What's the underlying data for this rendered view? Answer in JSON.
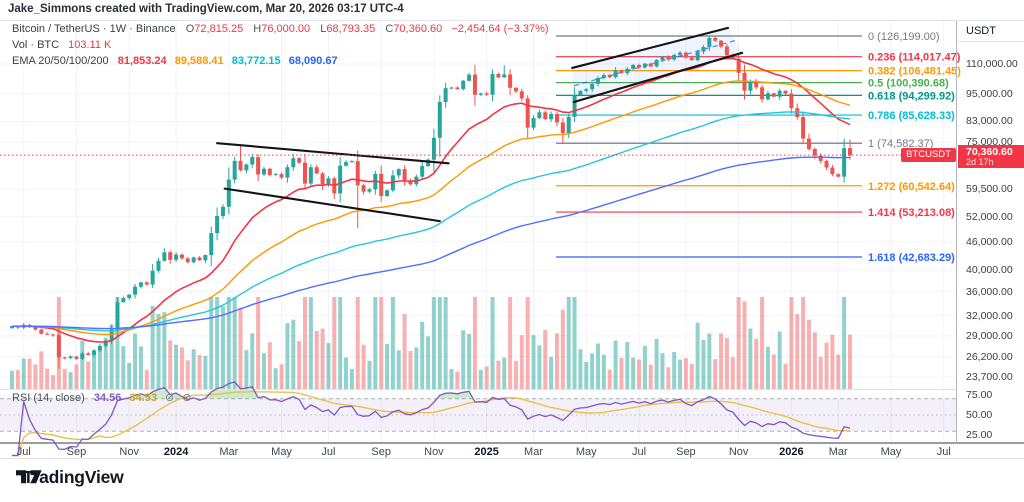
{
  "attribution": "Jake_Simmons created with TradingView.com, Mar 20, 2026 03:17 UTC-4",
  "legend": {
    "title": "Bitcoin / TetherUS · 1W · Binance",
    "o_label": "O",
    "o": "72,815.25",
    "h_label": "H",
    "h": "76,000.00",
    "l_label": "L",
    "l": "68,793.35",
    "c_label": "C",
    "c": "70,360.60",
    "change": "−2,454.64 (−3.37%)",
    "vol_label": "Vol · BTC",
    "vol": "103.11 K",
    "ema_label": "EMA 20/50/100/200",
    "ema20": "81,853.24",
    "ema50": "89,588.41",
    "ema100": "83,772.15",
    "ema200": "68,090.67"
  },
  "rsi_legend": {
    "label": "RSI (14, close)",
    "value": "34.56",
    "ma": "34.53",
    "icon1": "⊘",
    "icon2": "⊘"
  },
  "price_badge": {
    "symbol": "BTCUSDT",
    "price": "70,360.60",
    "countdown": "2d 17h"
  },
  "axis": {
    "currency": "USDT",
    "price_ticks": [
      {
        "label": "110,000.00",
        "v": 110
      },
      {
        "label": "95,000.00",
        "v": 95
      },
      {
        "label": "83,000.00",
        "v": 83
      },
      {
        "label": "75,000.00",
        "v": 75
      },
      {
        "label": "59,500.00",
        "v": 59.5
      },
      {
        "label": "52,000.00",
        "v": 52
      },
      {
        "label": "46,000.00",
        "v": 46
      },
      {
        "label": "40,000.00",
        "v": 40
      },
      {
        "label": "36,000.00",
        "v": 36
      },
      {
        "label": "32,000.00",
        "v": 32
      },
      {
        "label": "29,000.00",
        "v": 29
      },
      {
        "label": "26,200.00",
        "v": 26.2
      },
      {
        "label": "23,700.00",
        "v": 23.7
      }
    ],
    "rsi_ticks": [
      {
        "label": "75.00",
        "r": 75
      },
      {
        "label": "50.00",
        "r": 50
      },
      {
        "label": "25.00",
        "r": 25
      }
    ],
    "time_ticks": [
      {
        "label": "Jul",
        "i": 2
      },
      {
        "label": "Sep",
        "i": 11
      },
      {
        "label": "Nov",
        "i": 20
      },
      {
        "label": "2024",
        "i": 28,
        "year": true
      },
      {
        "label": "Mar",
        "i": 37
      },
      {
        "label": "May",
        "i": 46
      },
      {
        "label": "Jul",
        "i": 54
      },
      {
        "label": "Sep",
        "i": 63
      },
      {
        "label": "Nov",
        "i": 72
      },
      {
        "label": "2025",
        "i": 81,
        "year": true
      },
      {
        "label": "Mar",
        "i": 89
      },
      {
        "label": "May",
        "i": 98
      },
      {
        "label": "Jul",
        "i": 107
      },
      {
        "label": "Sep",
        "i": 115
      },
      {
        "label": "Nov",
        "i": 124
      },
      {
        "label": "2026",
        "i": 133,
        "year": true
      },
      {
        "label": "Mar",
        "i": 141
      },
      {
        "label": "May",
        "i": 150
      },
      {
        "label": "Jul",
        "i": 159
      }
    ]
  },
  "footer": {
    "brand": "TradingView"
  },
  "chart_data": {
    "type": "candlestick+volume+rsi",
    "symbol": "Bitcoin / TetherUS",
    "exchange": "Binance",
    "interval": "1W",
    "scale": "log",
    "unit": "thousand USDT",
    "ohlc_current": {
      "o": 72815.25,
      "h": 76000.0,
      "l": 68793.35,
      "c": 70360.6,
      "change": -2454.64,
      "change_pct": -3.37
    },
    "volume_current": "103.11 K",
    "ema_current": {
      "ema20": 81853.24,
      "ema50": 89588.41,
      "ema100": 83772.15,
      "ema200": 68090.67
    },
    "rsi_current": 34.56,
    "rsi_ma_current": 34.53,
    "rsi_period": 14,
    "closes_k": [
      30.4,
      30.2,
      30.6,
      30.3,
      29.9,
      29.3,
      29.2,
      29.1,
      26.1,
      26.0,
      26.2,
      25.9,
      26.6,
      26.4,
      27.0,
      27.6,
      28.3,
      29.9,
      34.2,
      34.9,
      35.5,
      36.9,
      37.7,
      37.3,
      39.9,
      41.9,
      43.7,
      42.1,
      43.2,
      42.4,
      41.6,
      42.6,
      42.0,
      43.1,
      48.0,
      52.2,
      54.6,
      62.4,
      68.4,
      65.3,
      67.2,
      69.7,
      64.0,
      65.8,
      63.8,
      64.1,
      63.0,
      66.3,
      69.3,
      67.8,
      61.2,
      66.3,
      64.3,
      61.0,
      62.8,
      58.3,
      66.8,
      68.0,
      68.3,
      60.7,
      58.8,
      59.5,
      64.2,
      57.6,
      59.2,
      63.7,
      65.7,
      62.1,
      61.0,
      63.3,
      66.7,
      68.8,
      76.6,
      91.3,
      97.7,
      98.0,
      97.3,
      101.3,
      104.4,
      94.6,
      95.2,
      94.6,
      104.7,
      103.0,
      104.5,
      97.9,
      96.2,
      92.9,
      80.5,
      84.4,
      86.8,
      83.9,
      86.1,
      82.6,
      78.4,
      84.9,
      94.3,
      96.4,
      97.2,
      99.8,
      102.7,
      104.2,
      103.1,
      106.6,
      105.2,
      107.4,
      109.5,
      108.1,
      110.2,
      108.7,
      112.2,
      113.9,
      112.5,
      115.0,
      116.3,
      113.5,
      112.1,
      116.9,
      119.6,
      125.0,
      123.3,
      119.8,
      114.8,
      112.9,
      105.3,
      96.5,
      100.9,
      98.1,
      92.5,
      95.3,
      93.7,
      96.5,
      95.1,
      88.6,
      84.8,
      76.3,
      72.5,
      70.2,
      68.4,
      66.2,
      64.1,
      63.3,
      72.8,
      70.36
    ],
    "overrides": {
      "0": {
        "o": 30.1
      },
      "39": {
        "h": 73.7
      },
      "59": {
        "l": 49.2
      },
      "84": {
        "h": 109.3
      },
      "94": {
        "l": 74.582
      },
      "119": {
        "h": 126.199
      },
      "143": {
        "o": 72.815,
        "h": 76.0,
        "l": 68.793,
        "c": 70.36
      }
    },
    "fib_levels": [
      {
        "label": "0 (126,199.00)",
        "v": 126.199,
        "color": "#787b86",
        "bold": false
      },
      {
        "label": "0.236 (114,017.47)",
        "v": 114.01747,
        "color": "#f23645",
        "bold": true
      },
      {
        "label": "0.382 (106,481.45)",
        "v": 106.48145,
        "color": "#ff9800",
        "bold": true
      },
      {
        "label": "0.5 (100,390.68)",
        "v": 100.39068,
        "color": "#4caf50",
        "bold": true
      },
      {
        "label": "0.618 (94,299.92)",
        "v": 94.29992,
        "color": "#009688",
        "bold": true
      },
      {
        "label": "0.786 (85,628.33)",
        "v": 85.62833,
        "color": "#00bcd4",
        "bold": true
      },
      {
        "label": "1 (74,582.37)",
        "v": 74.58237,
        "color": "#787b86",
        "bold": false
      },
      {
        "label": "1.272 (60,542.64)",
        "v": 60.54264,
        "color": "#ff9800",
        "bold": true
      },
      {
        "label": "1.414 (53,213.08)",
        "v": 53.21308,
        "color": "#f23645",
        "bold": true
      },
      {
        "label": "1.618 (42,683.29)",
        "v": 42.68329,
        "color": "#2962ff",
        "bold": true
      }
    ],
    "trendlines": [
      {
        "name": "flag-upper",
        "i1": 35,
        "p1": 74.6,
        "i2": 74.5,
        "p2": 67.6,
        "style": "solid"
      },
      {
        "name": "flag-lower",
        "i1": 36.3,
        "p1": 59.7,
        "i2": 73,
        "p2": 50.9,
        "style": "solid"
      },
      {
        "name": "wedge-upper",
        "i1": 95.6,
        "p1": 107.9,
        "i2": 122.2,
        "p2": 131.3,
        "style": "solid"
      },
      {
        "name": "wedge-lower",
        "i1": 95.9,
        "p1": 91.3,
        "i2": 124.6,
        "p2": 116.2,
        "style": "solid"
      },
      {
        "name": "wedge-mid",
        "i1": 95.9,
        "p1": 98.9,
        "i2": 123.9,
        "p2": 123.9,
        "style": "dashed"
      }
    ],
    "colors": {
      "up": "#26a69a",
      "down": "#ef5350",
      "ema20": "#f23645",
      "ema50": "#ff9800",
      "ema100": "#26c6da",
      "ema200": "#536dfe",
      "rsi": "#7e57c2",
      "rsi_ma": "#e7c14c",
      "accent_red": "#f23645",
      "grid": "#f0f3fa",
      "trend": "#141414",
      "wedge_dash": "#2962ff"
    }
  }
}
